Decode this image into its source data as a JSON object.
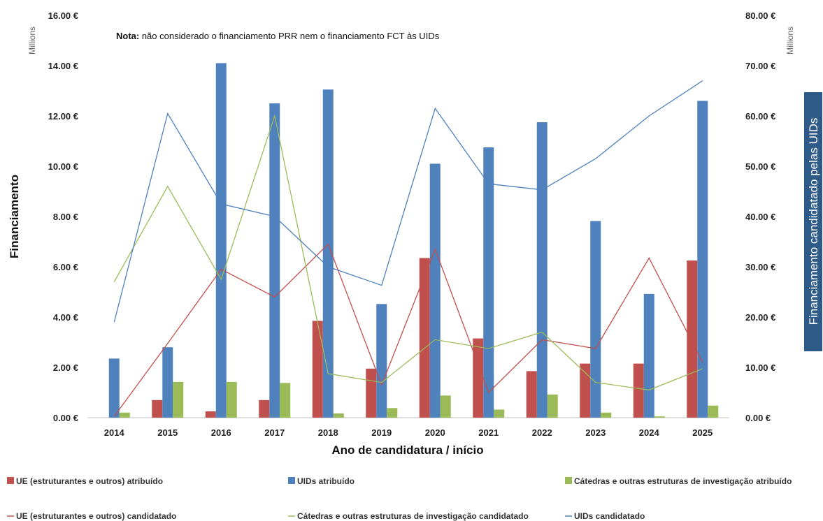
{
  "chart_data": {
    "type": "bar",
    "note_bold": "Nota:",
    "note_text": " não considerado o financiamento PRR nem o financiamento FCT às UIDs",
    "xlabel": "Ano de candidatura / início",
    "ylabel": "Financiamento",
    "y2label": "Financiamento candidatado pelas UIDs",
    "y_unit": "Millions",
    "y2_unit": "Millions",
    "ylim": [
      0,
      16
    ],
    "y2lim": [
      0,
      80
    ],
    "y_ticks": [
      "0.00 €",
      "2.00 €",
      "4.00 €",
      "6.00 €",
      "8.00 €",
      "10.00 €",
      "12.00 €",
      "14.00 €",
      "16.00 €"
    ],
    "y2_ticks": [
      "0.00 €",
      "10.00 €",
      "20.00 €",
      "30.00 €",
      "40.00 €",
      "50.00 €",
      "60.00 €",
      "70.00 €",
      "80.00 €"
    ],
    "categories": [
      "2014",
      "2015",
      "2016",
      "2017",
      "2018",
      "2019",
      "2020",
      "2021",
      "2022",
      "2023",
      "2024",
      "2025"
    ],
    "bar_series": [
      {
        "name": "UE (estruturantes e outros) atribuído",
        "color": "#c0504d",
        "values": [
          0,
          0.7,
          0.25,
          0.7,
          3.85,
          1.95,
          6.35,
          3.15,
          1.85,
          2.15,
          2.15,
          6.25
        ]
      },
      {
        "name": "UIDs atribuído",
        "color": "#4f81bd",
        "values": [
          2.35,
          2.8,
          14.1,
          12.5,
          13.05,
          4.52,
          10.1,
          10.75,
          11.75,
          7.82,
          4.92,
          12.6
        ]
      },
      {
        "name": "Cátedras e outras estruturas de investigação atribuído",
        "color": "#9bbb59",
        "values": [
          0.2,
          1.42,
          1.42,
          1.38,
          0.17,
          0.38,
          0.88,
          0.32,
          0.92,
          0.2,
          0.05,
          0.48
        ]
      }
    ],
    "line_series": [
      {
        "name": "UE (estruturantes e outros) candidatado",
        "color": "#c0504d",
        "axis": "left",
        "values": [
          0.05,
          2.95,
          5.9,
          4.8,
          6.9,
          1.3,
          6.7,
          1.0,
          3.1,
          2.75,
          6.35,
          2.2
        ]
      },
      {
        "name": "Cátedras e outras estruturas de investigação candidatado",
        "color": "#9bbb59",
        "axis": "left",
        "values": [
          5.4,
          9.2,
          5.5,
          12.0,
          1.75,
          1.4,
          3.1,
          2.75,
          3.4,
          1.4,
          1.1,
          1.95
        ]
      },
      {
        "name": "UIDs candidatado",
        "color": "#4f81bd",
        "axis": "right",
        "values": [
          19.0,
          60.5,
          42.5,
          40.0,
          30.0,
          26.3,
          61.5,
          46.5,
          45.3,
          51.5,
          60.0,
          67.0
        ]
      }
    ],
    "legend_position": "bottom",
    "grid": false
  }
}
